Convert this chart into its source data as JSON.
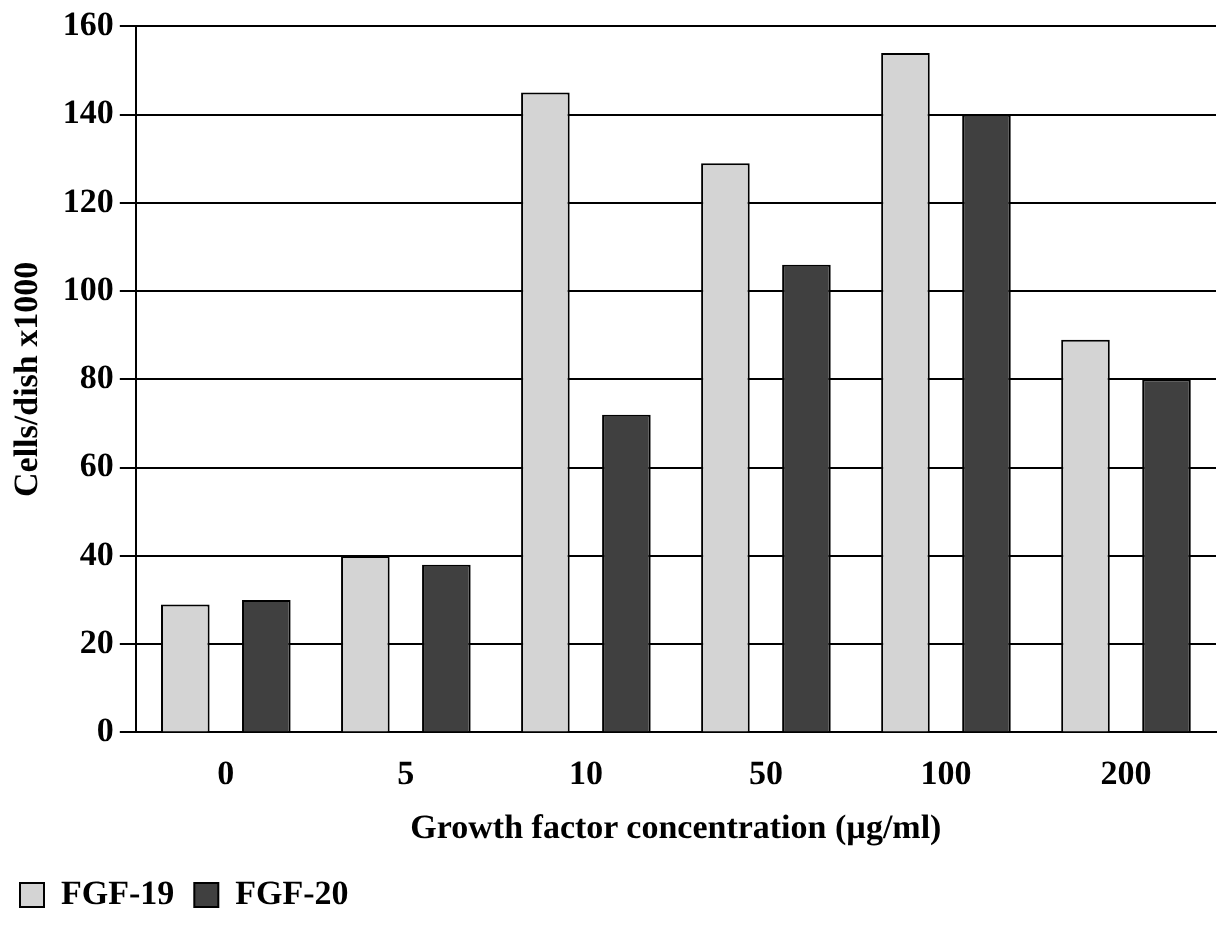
{
  "chart_data": {
    "type": "bar",
    "xlabel": "Growth factor concentration (µg/ml)",
    "ylabel": "Cells/dish x1000",
    "categories": [
      "0",
      "5",
      "10",
      "50",
      "100",
      "200"
    ],
    "series": [
      {
        "name": "FGF-19",
        "color": "#d4d4d4",
        "values": [
          29,
          40,
          145,
          129,
          154,
          89
        ]
      },
      {
        "name": "FGF-20",
        "color": "#404040",
        "values": [
          30,
          38,
          72,
          106,
          140,
          80
        ]
      }
    ],
    "ylim": [
      0,
      160
    ],
    "yticks": [
      0,
      20,
      40,
      60,
      80,
      100,
      120,
      140,
      160
    ],
    "grid": "y",
    "legend": "bottom left"
  }
}
